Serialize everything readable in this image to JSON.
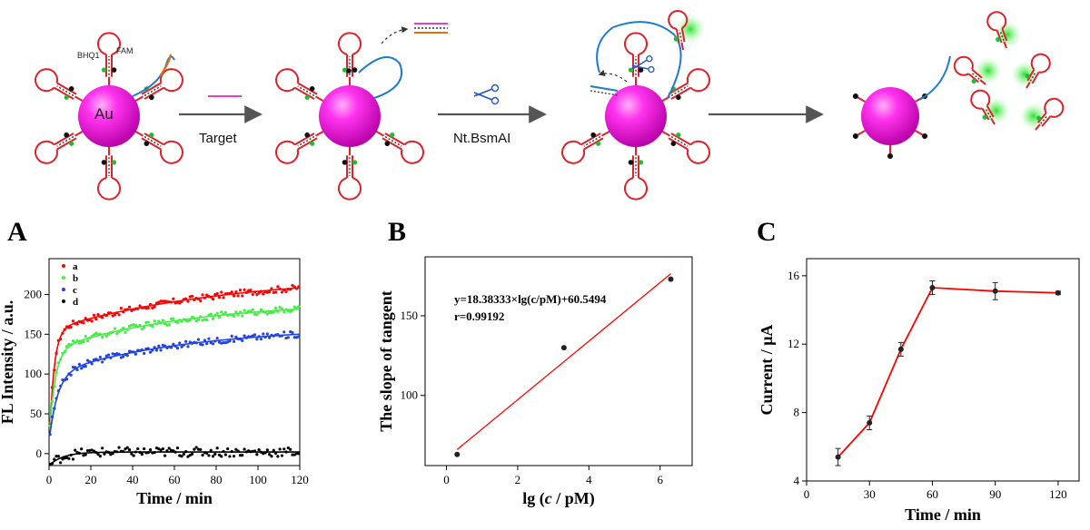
{
  "scheme": {
    "particle_label": "Au",
    "quencher_label": "BHQ1",
    "fluor_label": "FAM",
    "step1_label": "Target",
    "step2_label": "Nt.BsmAI"
  },
  "panels": {
    "A": {
      "letter": "A"
    },
    "B": {
      "letter": "B"
    },
    "C": {
      "letter": "C"
    }
  },
  "chart_data": [
    {
      "id": "A",
      "type": "scatter",
      "xlabel": "Time / min",
      "ylabel": "FL Intensity / a.u.",
      "xlim": [
        0,
        120
      ],
      "ylim": [
        -15,
        245
      ],
      "xticks": [
        0,
        20,
        40,
        60,
        80,
        100,
        120
      ],
      "yticks": [
        0,
        50,
        100,
        150,
        200
      ],
      "legend_position": "top-left",
      "series": [
        {
          "name": "a",
          "color": "#ff0000",
          "model": {
            "base": 5,
            "a1": 150,
            "k1": 0.45,
            "a2": 70,
            "k2": 0.012
          }
        },
        {
          "name": "b",
          "color": "#44ee44",
          "model": {
            "base": 20,
            "a1": 110,
            "k1": 0.35,
            "a2": 62,
            "k2": 0.015
          }
        },
        {
          "name": "c",
          "color": "#2244dd",
          "model": {
            "base": 15,
            "a1": 85,
            "k1": 0.25,
            "a2": 60,
            "k2": 0.015
          }
        },
        {
          "name": "d",
          "color": "#000000",
          "model": {
            "base": -15,
            "a1": 17,
            "k1": 0.15,
            "a2": 0,
            "k2": 0.01
          }
        }
      ]
    },
    {
      "id": "B",
      "type": "scatter",
      "xlabel": "lg (c / pM)",
      "xlabel_parts": [
        "lg (",
        "c",
        " / pM)"
      ],
      "ylabel": "The slope of tangent",
      "xlim": [
        -0.6,
        6.9
      ],
      "ylim": [
        56,
        187
      ],
      "xticks": [
        0,
        2,
        4,
        6
      ],
      "yticks": [
        100,
        150
      ],
      "equation": "y=18.38333×lg(c/pM)+60.5494",
      "r_text": "r=0.99192",
      "points": [
        {
          "x": 0.3,
          "y": 63
        },
        {
          "x": 3.3,
          "y": 130
        },
        {
          "x": 6.3,
          "y": 173
        }
      ],
      "fit": {
        "slope": 18.38333,
        "intercept": 60.5494,
        "x_range": [
          0.3,
          6.3
        ],
        "color": "#ff0000"
      }
    },
    {
      "id": "C",
      "type": "line",
      "xlabel": "Time / min",
      "ylabel": "Current / μA",
      "xlim": [
        0,
        130
      ],
      "ylim": [
        4,
        17
      ],
      "xticks": [
        0,
        30,
        60,
        90,
        120
      ],
      "yticks": [
        4,
        8,
        12,
        16
      ],
      "color": "#ff0000",
      "points": [
        {
          "x": 15,
          "y": 5.4,
          "err": 0.5
        },
        {
          "x": 30,
          "y": 7.4,
          "err": 0.4
        },
        {
          "x": 45,
          "y": 11.7,
          "err": 0.4
        },
        {
          "x": 60,
          "y": 15.3,
          "err": 0.4
        },
        {
          "x": 90,
          "y": 15.1,
          "err": 0.5
        },
        {
          "x": 120,
          "y": 15.0,
          "err": 0.1
        }
      ]
    }
  ]
}
